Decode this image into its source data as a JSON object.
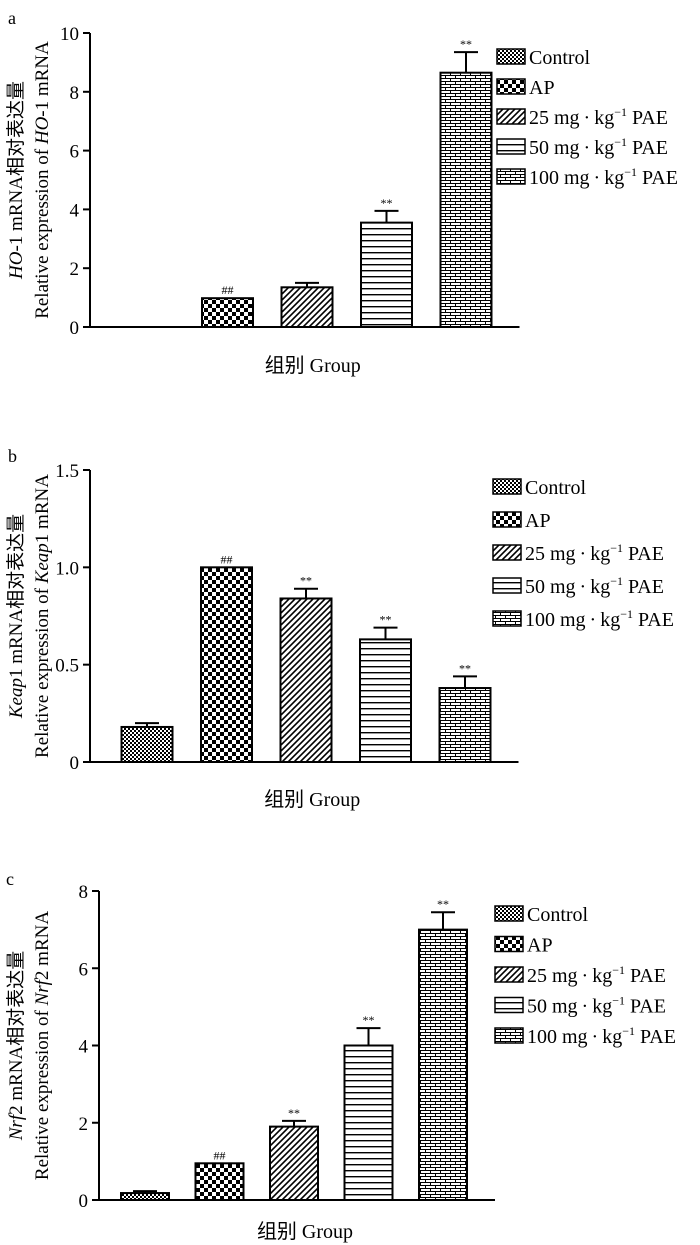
{
  "x_axis_label": "组别 Group",
  "legend": [
    "Control",
    "AP",
    "25 mg · kg",
    "50 mg · kg",
    "100 mg · kg"
  ],
  "legend_sup": "−1",
  "legend_suffix": " PAE",
  "chart_data": [
    {
      "type": "bar",
      "panel_label": "a",
      "categories": [
        "Control",
        "AP",
        "25 mg·kg⁻¹ PAE",
        "50 mg·kg⁻¹ PAE",
        "100 mg·kg⁻¹ PAE"
      ],
      "values": [
        0,
        0.98,
        1.35,
        3.55,
        8.65
      ],
      "errors": [
        0,
        0,
        0.15,
        0.4,
        0.7
      ],
      "annotations": [
        "",
        "##",
        "",
        "**",
        "**"
      ],
      "ylim": [
        0,
        10
      ],
      "yticks": [
        "0",
        "2",
        "4",
        "6",
        "8",
        "10"
      ],
      "ylabel_line1_cn": "mRNA相对表达量",
      "ylabel_line1_gene": "HO",
      "ylabel_line1_suffix": "-1 ",
      "ylabel_line2_prefix": "Relative expression of ",
      "ylabel_line2_gene": "HO",
      "ylabel_line2_suffix": "-1 mRNA",
      "xlabel": "组别 Group"
    },
    {
      "type": "bar",
      "panel_label": "b",
      "categories": [
        "Control",
        "AP",
        "25 mg·kg⁻¹ PAE",
        "50 mg·kg⁻¹ PAE",
        "100 mg·kg⁻¹ PAE"
      ],
      "values": [
        0.18,
        1.0,
        0.84,
        0.63,
        0.38
      ],
      "errors": [
        0.02,
        0,
        0.05,
        0.06,
        0.06
      ],
      "annotations": [
        "",
        "##",
        "**",
        "**",
        "**"
      ],
      "ylim": [
        0,
        1.5
      ],
      "yticks": [
        "0",
        "0.5",
        "1.0",
        "1.5"
      ],
      "ylabel_line1_cn": "mRNA相对表达量",
      "ylabel_line1_gene": "Keap",
      "ylabel_line1_suffix": "1 ",
      "ylabel_line2_prefix": "Relative expression of ",
      "ylabel_line2_gene": "Keap",
      "ylabel_line2_suffix": "1 mRNA",
      "xlabel": "组别 Group"
    },
    {
      "type": "bar",
      "panel_label": "c",
      "categories": [
        "Control",
        "AP",
        "25 mg·kg⁻¹ PAE",
        "50 mg·kg⁻¹ PAE",
        "100 mg·kg⁻¹ PAE"
      ],
      "values": [
        0.18,
        0.95,
        1.9,
        4.0,
        7.0
      ],
      "errors": [
        0.05,
        0,
        0.15,
        0.45,
        0.45
      ],
      "annotations": [
        "",
        "##",
        "**",
        "**",
        "**"
      ],
      "ylim": [
        0,
        8
      ],
      "yticks": [
        "0",
        "2",
        "4",
        "6",
        "8"
      ],
      "ylabel_line1_cn": "mRNA相对表达量",
      "ylabel_line1_gene": "Nrf",
      "ylabel_line1_suffix": "2 ",
      "ylabel_line2_prefix": "Relative expression of ",
      "ylabel_line2_gene": "Nrf",
      "ylabel_line2_suffix": "2 mRNA",
      "xlabel": "组别 Group"
    }
  ]
}
